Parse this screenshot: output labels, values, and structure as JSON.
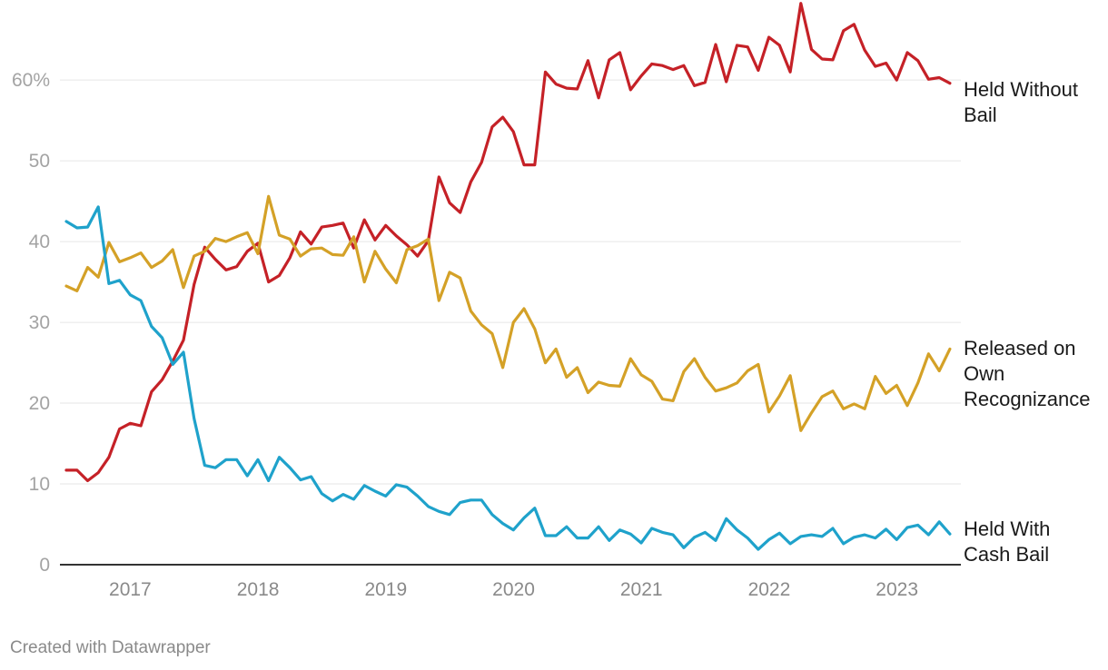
{
  "chart_data": {
    "type": "line",
    "ylim": [
      0,
      68
    ],
    "yticks": [
      {
        "value": 0,
        "label": "0"
      },
      {
        "value": 10,
        "label": "10"
      },
      {
        "value": 20,
        "label": "20"
      },
      {
        "value": 30,
        "label": "30"
      },
      {
        "value": 40,
        "label": "40"
      },
      {
        "value": 50,
        "label": "50"
      },
      {
        "value": 60,
        "label": "60%"
      }
    ],
    "xlim": [
      2016.45,
      2023.5
    ],
    "xticks": [
      {
        "value": 2017,
        "label": "2017"
      },
      {
        "value": 2018,
        "label": "2018"
      },
      {
        "value": 2019,
        "label": "2019"
      },
      {
        "value": 2020,
        "label": "2020"
      },
      {
        "value": 2021,
        "label": "2021"
      },
      {
        "value": 2022,
        "label": "2022"
      },
      {
        "value": 2023,
        "label": "2023"
      }
    ],
    "x_start": 2016.5,
    "x_step": 0.0833,
    "series": [
      {
        "name": "Held Without Bail",
        "label_lines": [
          "Held Without",
          "Bail"
        ],
        "color": "#c52127",
        "values": [
          11.7,
          11.7,
          10.4,
          11.4,
          13.3,
          16.8,
          17.5,
          17.2,
          21.4,
          22.9,
          25.2,
          27.8,
          34.7,
          39.3,
          37.8,
          36.5,
          36.9,
          38.8,
          39.8,
          35.0,
          35.8,
          38.0,
          41.2,
          39.7,
          41.8,
          42.0,
          42.3,
          39.2,
          42.7,
          40.2,
          42.0,
          40.7,
          39.6,
          38.2,
          40.1,
          48.0,
          44.8,
          43.6,
          47.4,
          49.8,
          54.2,
          55.4,
          53.6,
          49.5,
          49.5,
          61.0,
          59.5,
          59.0,
          58.9,
          62.4,
          57.8,
          62.5,
          63.4,
          58.8,
          60.5,
          62.0,
          61.8,
          61.3,
          61.8,
          59.3,
          59.7,
          64.4,
          59.8,
          64.3,
          64.1,
          61.2,
          65.3,
          64.3,
          61.0,
          69.5,
          63.8,
          62.6,
          62.5,
          66.1,
          66.9,
          63.7,
          61.7,
          62.1,
          60.0,
          63.4,
          62.4,
          60.1,
          60.3,
          59.6
        ]
      },
      {
        "name": "Released on Own Recognizance",
        "label_lines": [
          "Released on",
          "Own",
          "Recognizance"
        ],
        "color": "#d4a127",
        "values": [
          34.5,
          33.9,
          36.8,
          35.6,
          39.9,
          37.5,
          38.0,
          38.6,
          36.8,
          37.6,
          39.0,
          34.3,
          38.2,
          38.8,
          40.4,
          40.0,
          40.6,
          41.1,
          38.5,
          45.6,
          40.8,
          40.3,
          38.2,
          39.1,
          39.2,
          38.4,
          38.3,
          40.6,
          35.0,
          38.8,
          36.6,
          34.9,
          39.0,
          39.5,
          40.3,
          32.7,
          36.2,
          35.5,
          31.4,
          29.7,
          28.6,
          24.4,
          30.0,
          31.7,
          29.2,
          25.0,
          26.7,
          23.2,
          24.4,
          21.3,
          22.6,
          22.2,
          22.1,
          25.5,
          23.5,
          22.7,
          20.5,
          20.3,
          23.9,
          25.5,
          23.2,
          21.5,
          21.9,
          22.5,
          24.0,
          24.8,
          18.9,
          20.9,
          23.4,
          16.6,
          18.8,
          20.8,
          21.5,
          19.3,
          19.9,
          19.3,
          23.3,
          21.2,
          22.2,
          19.7,
          22.5,
          26.1,
          24.0,
          26.7
        ]
      },
      {
        "name": "Held With Cash Bail",
        "label_lines": [
          "Held With",
          "Cash Bail"
        ],
        "color": "#1fa2cb",
        "values": [
          42.5,
          41.7,
          41.8,
          44.3,
          34.8,
          35.2,
          33.4,
          32.7,
          29.5,
          28.1,
          24.8,
          26.3,
          18.1,
          12.3,
          12.0,
          13.0,
          13.0,
          11.0,
          13.0,
          10.4,
          13.3,
          12.0,
          10.5,
          10.9,
          8.8,
          7.9,
          8.7,
          8.1,
          9.8,
          9.1,
          8.5,
          9.9,
          9.6,
          8.5,
          7.2,
          6.6,
          6.2,
          7.7,
          8.0,
          8.0,
          6.2,
          5.1,
          4.3,
          5.8,
          7.0,
          3.6,
          3.6,
          4.7,
          3.3,
          3.3,
          4.7,
          3.0,
          4.3,
          3.8,
          2.7,
          4.5,
          4.0,
          3.7,
          2.1,
          3.4,
          4.0,
          3.0,
          5.7,
          4.3,
          3.3,
          1.9,
          3.1,
          3.9,
          2.6,
          3.5,
          3.7,
          3.5,
          4.5,
          2.6,
          3.4,
          3.7,
          3.3,
          4.4,
          3.1,
          4.6,
          4.9,
          3.7,
          5.3,
          3.8
        ]
      }
    ]
  },
  "footer": {
    "credit": "Created with Datawrapper"
  }
}
